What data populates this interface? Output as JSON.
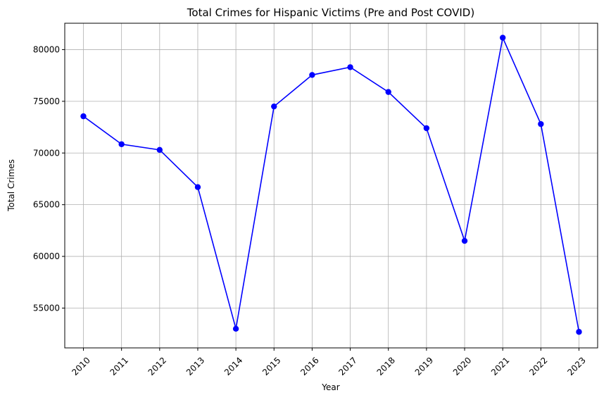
{
  "chart_data": {
    "type": "line",
    "title": "Total Crimes for Hispanic Victims (Pre and Post COVID)",
    "xlabel": "Year",
    "ylabel": "Total Crimes",
    "x": [
      "2010",
      "2011",
      "2012",
      "2013",
      "2014",
      "2015",
      "2016",
      "2017",
      "2018",
      "2019",
      "2020",
      "2021",
      "2022",
      "2023"
    ],
    "series": [
      {
        "values": [
          73550,
          70850,
          70300,
          66700,
          53000,
          74500,
          77550,
          78300,
          75900,
          72400,
          61500,
          81150,
          72800,
          52700
        ],
        "color": "#0000ff",
        "marker": "circle"
      }
    ],
    "ylim": [
      51150,
      82550
    ],
    "yticks": [
      55000,
      60000,
      65000,
      70000,
      75000,
      80000
    ],
    "ytick_labels": [
      "55000",
      "60000",
      "65000",
      "70000",
      "75000",
      "80000"
    ],
    "xtick_rotation": 45,
    "grid": true,
    "legend": "none"
  }
}
